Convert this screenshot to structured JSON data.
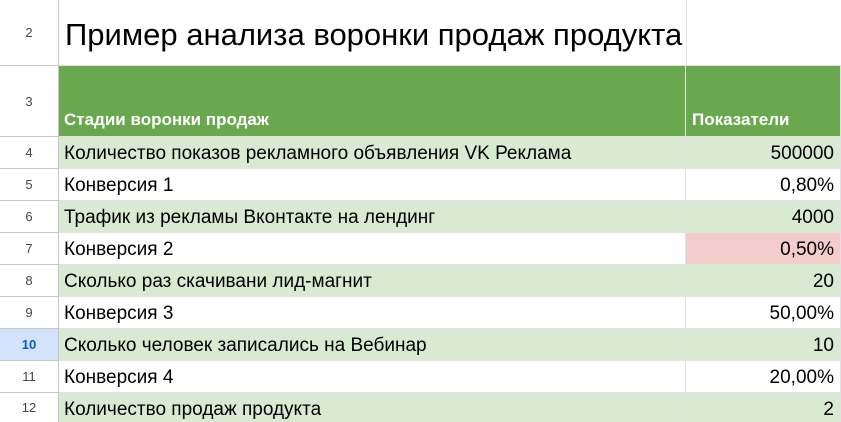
{
  "sheet": {
    "title_row": {
      "row_number": "2",
      "text": "Пример анализа воронки продаж продукта"
    },
    "header_row": {
      "row_number": "3",
      "col_a": "Стадии воронки продаж",
      "col_b": "Показатели"
    },
    "rows": [
      {
        "row_number": "4",
        "label": "Количество показов рекламного объявления VK Реклама",
        "value": "500000"
      },
      {
        "row_number": "5",
        "label": "Конверсия 1",
        "value": "0,80%"
      },
      {
        "row_number": "6",
        "label": "Трафик из рекламы Вконтакте на лендинг",
        "value": "4000"
      },
      {
        "row_number": "7",
        "label": "Конверсия 2",
        "value": "0,50%"
      },
      {
        "row_number": "8",
        "label": "Сколько раз скачивани лид-магнит",
        "value": "20"
      },
      {
        "row_number": "9",
        "label": "Конверсия 3",
        "value": "50,00%"
      },
      {
        "row_number": "10",
        "label": "Сколько человек записались на Вебинар",
        "value": "10"
      },
      {
        "row_number": "11",
        "label": "Конверсия 4",
        "value": "20,00%"
      },
      {
        "row_number": "12",
        "label": "Количество продаж продукта",
        "value": "2"
      }
    ],
    "selected_row": "10",
    "colors": {
      "header_green": "#6aa84f",
      "light_green": "#d9ead3",
      "highlight_pink": "#f4cccc",
      "selected_row_header": "#d3e3fd"
    }
  }
}
